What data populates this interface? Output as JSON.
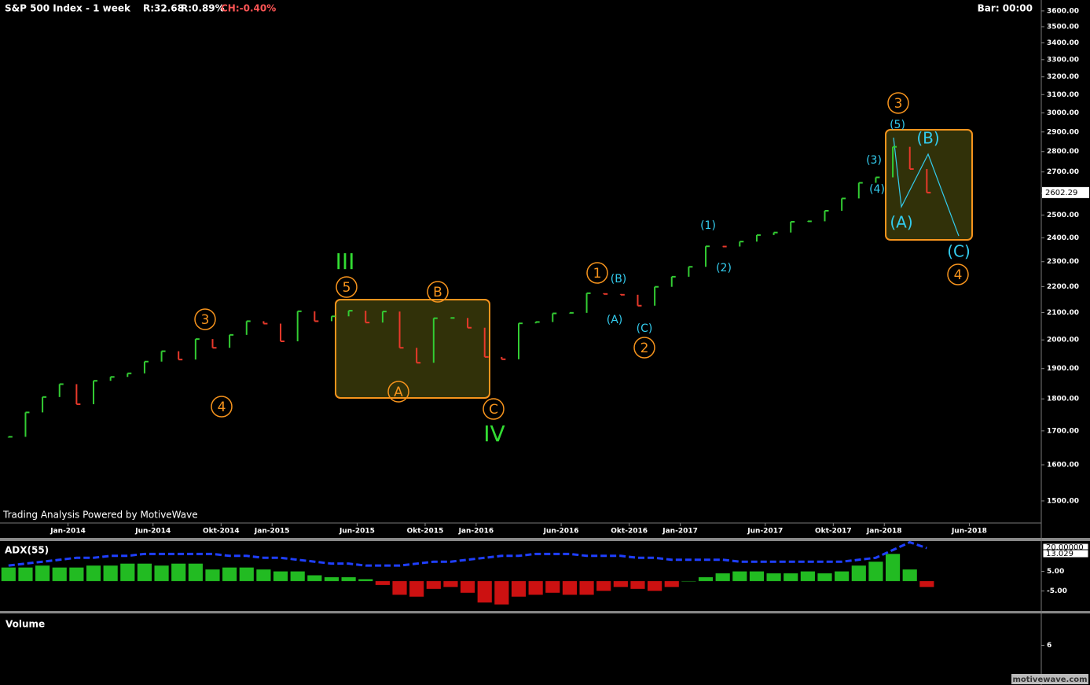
{
  "header": {
    "title": "S&P 500 Index - 1 week",
    "stats": [
      "R:32.68",
      "R:0.89%",
      "CH:-0.40%"
    ],
    "bar_time": "Bar: 00:00",
    "credit": "Trading Analysis Powered by MotiveWave",
    "watermark": "motivewave.com"
  },
  "chart_data": [
    {
      "type": "price",
      "log_scale": true,
      "x": [
        "2013-09",
        "2013-10",
        "2013-11",
        "2013-12",
        "2014-01",
        "2014-02",
        "2014-03",
        "2014-04",
        "2014-05",
        "2014-06",
        "2014-07",
        "2014-08",
        "2014-09",
        "2014-10",
        "2014-11",
        "2014-12",
        "2015-01",
        "2015-02",
        "2015-03",
        "2015-04",
        "2015-05",
        "2015-06",
        "2015-07",
        "2015-08",
        "2015-09",
        "2015-10",
        "2015-11",
        "2015-12",
        "2016-01",
        "2016-02",
        "2016-03",
        "2016-04",
        "2016-05",
        "2016-06",
        "2016-07",
        "2016-08",
        "2016-09",
        "2016-10",
        "2016-11",
        "2016-12",
        "2017-01",
        "2017-02",
        "2017-03",
        "2017-04",
        "2017-05",
        "2017-06",
        "2017-07",
        "2017-08",
        "2017-09",
        "2017-10",
        "2017-11",
        "2017-12",
        "2018-01",
        "2018-02",
        "2018-03"
      ],
      "series": [
        {
          "name": "S&P 500 Index",
          "up_color": "#33cc33",
          "down_color": "#e8392b",
          "values": [
            1682,
            1757,
            1806,
            1848,
            1783,
            1859,
            1872,
            1884,
            1924,
            1960,
            1931,
            2003,
            1972,
            2018,
            2068,
            2059,
            1995,
            2105,
            2068,
            2086,
            2107,
            2063,
            2104,
            1972,
            1920,
            2079,
            2080,
            2044,
            1940,
            1932,
            2060,
            2065,
            2097,
            2099,
            2174,
            2171,
            2168,
            2126,
            2199,
            2239,
            2279,
            2364,
            2363,
            2384,
            2412,
            2423,
            2470,
            2472,
            2519,
            2575,
            2648,
            2674,
            2824,
            2714,
            2602.29
          ]
        }
      ],
      "price_label": 2602.29,
      "xlim": [
        "2013-09",
        "2018-10"
      ],
      "xticks": [
        {
          "value": "2014-01",
          "label": "Jan-2014"
        },
        {
          "value": "2014-06",
          "label": "Jun-2014"
        },
        {
          "value": "2014-10",
          "label": "Okt-2014"
        },
        {
          "value": "2015-01",
          "label": "Jan-2015"
        },
        {
          "value": "2015-06",
          "label": "Jun-2015"
        },
        {
          "value": "2015-10",
          "label": "Okt-2015"
        },
        {
          "value": "2016-01",
          "label": "Jan-2016"
        },
        {
          "value": "2016-06",
          "label": "Jun-2016"
        },
        {
          "value": "2016-10",
          "label": "Okt-2016"
        },
        {
          "value": "2017-01",
          "label": "Jan-2017"
        },
        {
          "value": "2017-06",
          "label": "Jun-2017"
        },
        {
          "value": "2017-10",
          "label": "Okt-2017"
        },
        {
          "value": "2018-01",
          "label": "Jan-2018"
        },
        {
          "value": "2018-06",
          "label": "Jun-2018"
        }
      ],
      "ylim": [
        1442,
        3671
      ],
      "yticks": [
        {
          "value": 1500,
          "label": "1500.00"
        },
        {
          "value": 1600,
          "label": "1600.00"
        },
        {
          "value": 1700,
          "label": "1700.00"
        },
        {
          "value": 1800,
          "label": "1800.00"
        },
        {
          "value": 1900,
          "label": "1900.00"
        },
        {
          "value": 2000,
          "label": "2000.00"
        },
        {
          "value": 2100,
          "label": "2100.00"
        },
        {
          "value": 2200,
          "label": "2200.00"
        },
        {
          "value": 2300,
          "label": "2300.00"
        },
        {
          "value": 2400,
          "label": "2400.00"
        },
        {
          "value": 2500,
          "label": "2500.00"
        },
        {
          "value": 2600,
          "label": "2600.00"
        },
        {
          "value": 2700,
          "label": "2700.00"
        },
        {
          "value": 2800,
          "label": "2800.00"
        },
        {
          "value": 2900,
          "label": "2900.00"
        },
        {
          "value": 3000,
          "label": "3000.00"
        },
        {
          "value": 3100,
          "label": "3100.00"
        },
        {
          "value": 3200,
          "label": "3200.00"
        },
        {
          "value": 3300,
          "label": "3300.00"
        },
        {
          "value": 3400,
          "label": "3400.00"
        },
        {
          "value": 3500,
          "label": "3500.00"
        },
        {
          "value": 3600,
          "label": "3600.00"
        }
      ],
      "annotations": [
        {
          "text": "3",
          "color": "#f7941d",
          "circled": true
        },
        {
          "text": "4",
          "color": "#f7941d",
          "circled": true
        },
        {
          "text": "5",
          "color": "#f7941d",
          "circled": true
        },
        {
          "text": "A",
          "color": "#f7941d",
          "circled": true
        },
        {
          "text": "B",
          "color": "#f7941d",
          "circled": true
        },
        {
          "text": "C",
          "color": "#f7941d",
          "circled": true
        },
        {
          "text": "1",
          "color": "#f7941d",
          "circled": true
        },
        {
          "text": "2",
          "color": "#f7941d",
          "circled": true
        },
        {
          "text": "3",
          "color": "#f7941d",
          "circled": true
        },
        {
          "text": "4",
          "color": "#f7941d",
          "circled": true
        },
        {
          "text": "III",
          "color": "#33dd33",
          "circled": false
        },
        {
          "text": "IV",
          "color": "#33dd33",
          "circled": false
        },
        {
          "text": "(B)",
          "color": "#33ccee",
          "circled": false
        },
        {
          "text": "(A)",
          "color": "#33ccee",
          "circled": false
        },
        {
          "text": "(C)",
          "color": "#33ccee",
          "circled": false
        },
        {
          "text": "(1)",
          "color": "#33ccee",
          "circled": false
        },
        {
          "text": "(2)",
          "color": "#33ccee",
          "circled": false
        },
        {
          "text": "(3)",
          "color": "#33ccee",
          "circled": false
        },
        {
          "text": "(4)",
          "color": "#33ccee",
          "circled": false
        },
        {
          "text": "(5)",
          "color": "#33ccee",
          "circled": false
        },
        {
          "text": "(A)",
          "color": "#33ccee",
          "circled": false
        },
        {
          "text": "(B)",
          "color": "#33ccee",
          "circled": false
        },
        {
          "text": "(C)",
          "color": "#33ccee",
          "circled": false
        }
      ]
    },
    {
      "type": "indicator",
      "title": "ADX(55)",
      "series": [
        {
          "name": "histogram",
          "up_color": "#22bb22",
          "down_color": "#cc1111",
          "values": [
            7,
            7,
            8,
            7,
            7,
            8,
            8,
            9,
            9,
            8,
            9,
            9,
            6,
            7,
            7,
            6,
            5,
            5,
            3,
            2,
            2,
            1,
            -2,
            -7,
            -8,
            -4,
            -3,
            -6,
            -11,
            -12,
            -8,
            -7,
            -6,
            -7,
            -7,
            -5,
            -3,
            -4,
            -5,
            -3,
            0,
            2,
            4,
            5,
            5,
            4,
            4,
            5,
            4,
            5,
            8,
            10,
            14,
            6,
            -3
          ]
        },
        {
          "name": "ADX",
          "color": "#1f3fff",
          "dashed": true,
          "values": [
            8,
            9,
            10,
            11,
            12,
            12,
            13,
            13,
            14,
            14,
            14,
            14,
            14,
            13,
            13,
            12,
            12,
            11,
            10,
            9,
            9,
            8,
            8,
            8,
            9,
            10,
            10,
            11,
            12,
            13,
            13,
            14,
            14,
            14,
            13,
            13,
            13,
            12,
            12,
            11,
            11,
            11,
            11,
            10,
            10,
            10,
            10,
            10,
            10,
            10,
            11,
            12,
            16,
            20,
            17
          ]
        }
      ],
      "marker_labels": [
        {
          "value": 20,
          "label": "20.00000"
        },
        {
          "value": 13.029,
          "label": "13.029"
        }
      ],
      "ylim": [
        -15.4,
        20.6
      ],
      "yticks": [
        {
          "value": 5,
          "label": "5.00"
        },
        {
          "value": -5,
          "label": "-5.00"
        }
      ]
    },
    {
      "type": "volume",
      "title": "Volume",
      "ylim": [
        0,
        12
      ],
      "yticks": [
        6
      ]
    }
  ]
}
